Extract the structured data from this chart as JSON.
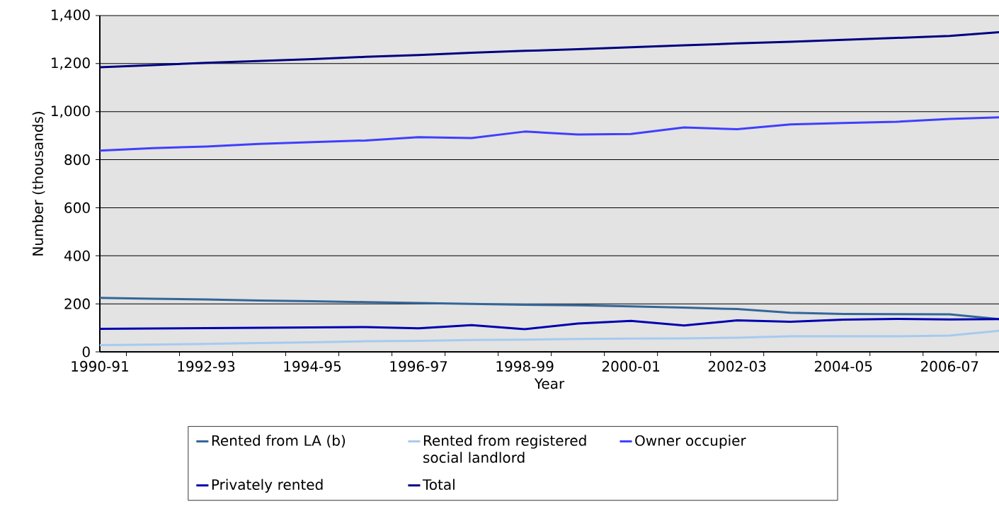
{
  "chart_data": {
    "type": "line",
    "xlabel": "Year",
    "ylabel": "Number (thousands)",
    "categories": [
      "1990-91",
      null,
      "1992-93",
      null,
      "1994-95",
      null,
      "1996-97",
      null,
      "1998-99",
      null,
      "2000-01",
      null,
      "2002-03",
      null,
      "2004-05",
      null,
      "2006-07",
      null
    ],
    "series": [
      {
        "name": "Rented from LA (b)",
        "color": "#336699",
        "values": [
          225,
          221,
          218,
          214,
          211,
          207,
          203,
          200,
          196,
          194,
          189,
          184,
          178,
          163,
          158,
          157,
          156,
          135
        ]
      },
      {
        "name": "Rented from registered social landlord",
        "color": "#a6caf0",
        "values": [
          28,
          30,
          33,
          37,
          40,
          44,
          46,
          49,
          51,
          54,
          55,
          56,
          59,
          65,
          65,
          65,
          68,
          89
        ]
      },
      {
        "name": "Owner occupier",
        "color": "#3f3fff",
        "values": [
          838,
          848,
          855,
          866,
          873,
          880,
          894,
          890,
          917,
          905,
          907,
          934,
          927,
          947,
          953,
          958,
          970,
          977
        ]
      },
      {
        "name": "Privately rented",
        "color": "#0000b0",
        "values": [
          96,
          97,
          99,
          100,
          102,
          103,
          98,
          111,
          94,
          118,
          129,
          110,
          131,
          125,
          134,
          137,
          135,
          136
        ]
      },
      {
        "name": "Total",
        "color": "#000080",
        "values": [
          1185,
          1194,
          1203,
          1211,
          1219,
          1228,
          1236,
          1245,
          1253,
          1260,
          1268,
          1276,
          1284,
          1291,
          1299,
          1307,
          1315,
          1332
        ]
      }
    ],
    "ylim": [
      0,
      1400
    ],
    "yticks": [
      {
        "value": 0,
        "label": "0"
      },
      {
        "value": 200,
        "label": "200"
      },
      {
        "value": 400,
        "label": "400"
      },
      {
        "value": 600,
        "label": "600"
      },
      {
        "value": 800,
        "label": "800"
      },
      {
        "value": 1000,
        "label": "1,000"
      },
      {
        "value": 1200,
        "label": "1,200"
      },
      {
        "value": 1400,
        "label": "1,400"
      }
    ],
    "grid": "y",
    "legend": "bottom",
    "marker": "none",
    "line_style": "solid"
  }
}
